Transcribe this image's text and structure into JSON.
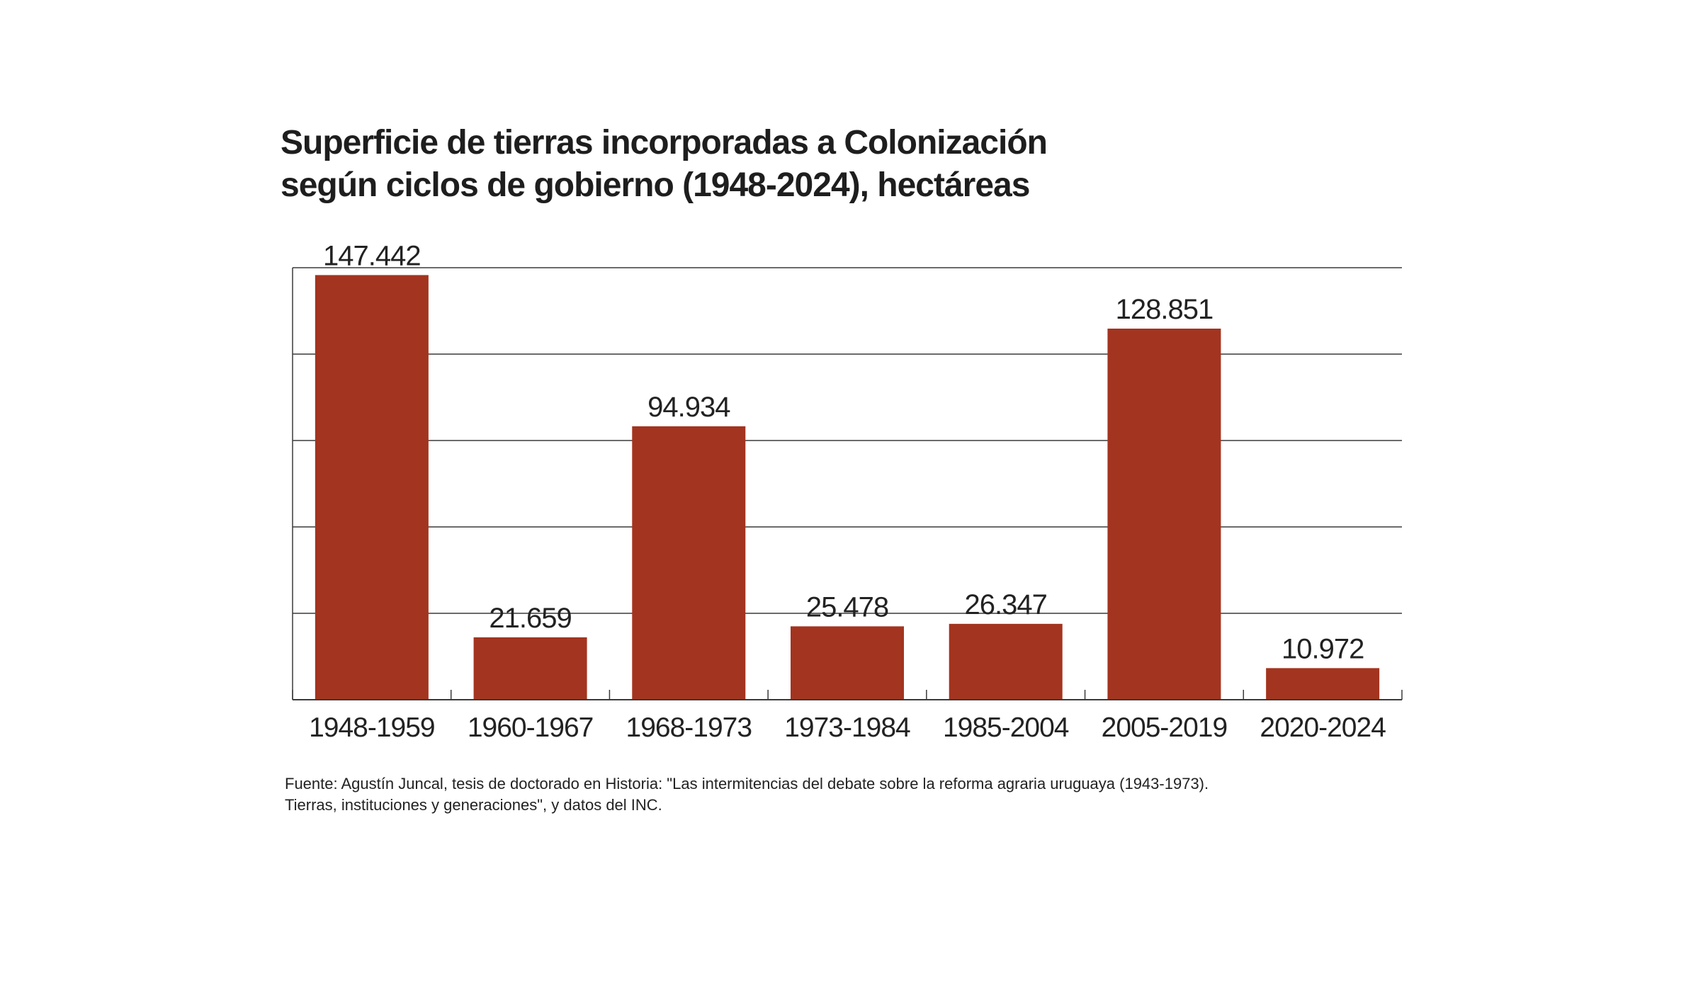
{
  "title": {
    "line1": "Superficie de tierras incorporadas a Colonización",
    "line2": "según ciclos de gobierno (1948-2024), hectáreas"
  },
  "source": {
    "line1": "Fuente: Agustín Juncal, tesis de doctorado en Historia: \"Las intermitencias del debate sobre la reforma agraria uruguaya (1943-1973).",
    "line2": "Tierras, instituciones y generaciones\", y datos del INC."
  },
  "colors": {
    "bar": "#a3341f",
    "grid": "#3a3a3a",
    "text": "#222222"
  },
  "chart_data": {
    "type": "bar",
    "title": "Superficie de tierras incorporadas a Colonización según ciclos de gobierno (1948-2024), hectáreas",
    "xlabel": "",
    "ylabel": "",
    "categories": [
      "1948-1959",
      "1960-1967",
      "1968-1973",
      "1973-1984",
      "1985-2004",
      "2005-2019",
      "2020-2024"
    ],
    "values": [
      147442,
      21659,
      94934,
      25478,
      26347,
      128851,
      10972
    ],
    "value_labels": [
      "147.442",
      "21.659",
      "94.934",
      "25.478",
      "26.347",
      "128.851",
      "10.972"
    ],
    "ylim": [
      0,
      150000
    ],
    "y_gridlines": [
      30000,
      60000,
      90000,
      120000,
      150000
    ],
    "grid": true,
    "legend": "none"
  }
}
